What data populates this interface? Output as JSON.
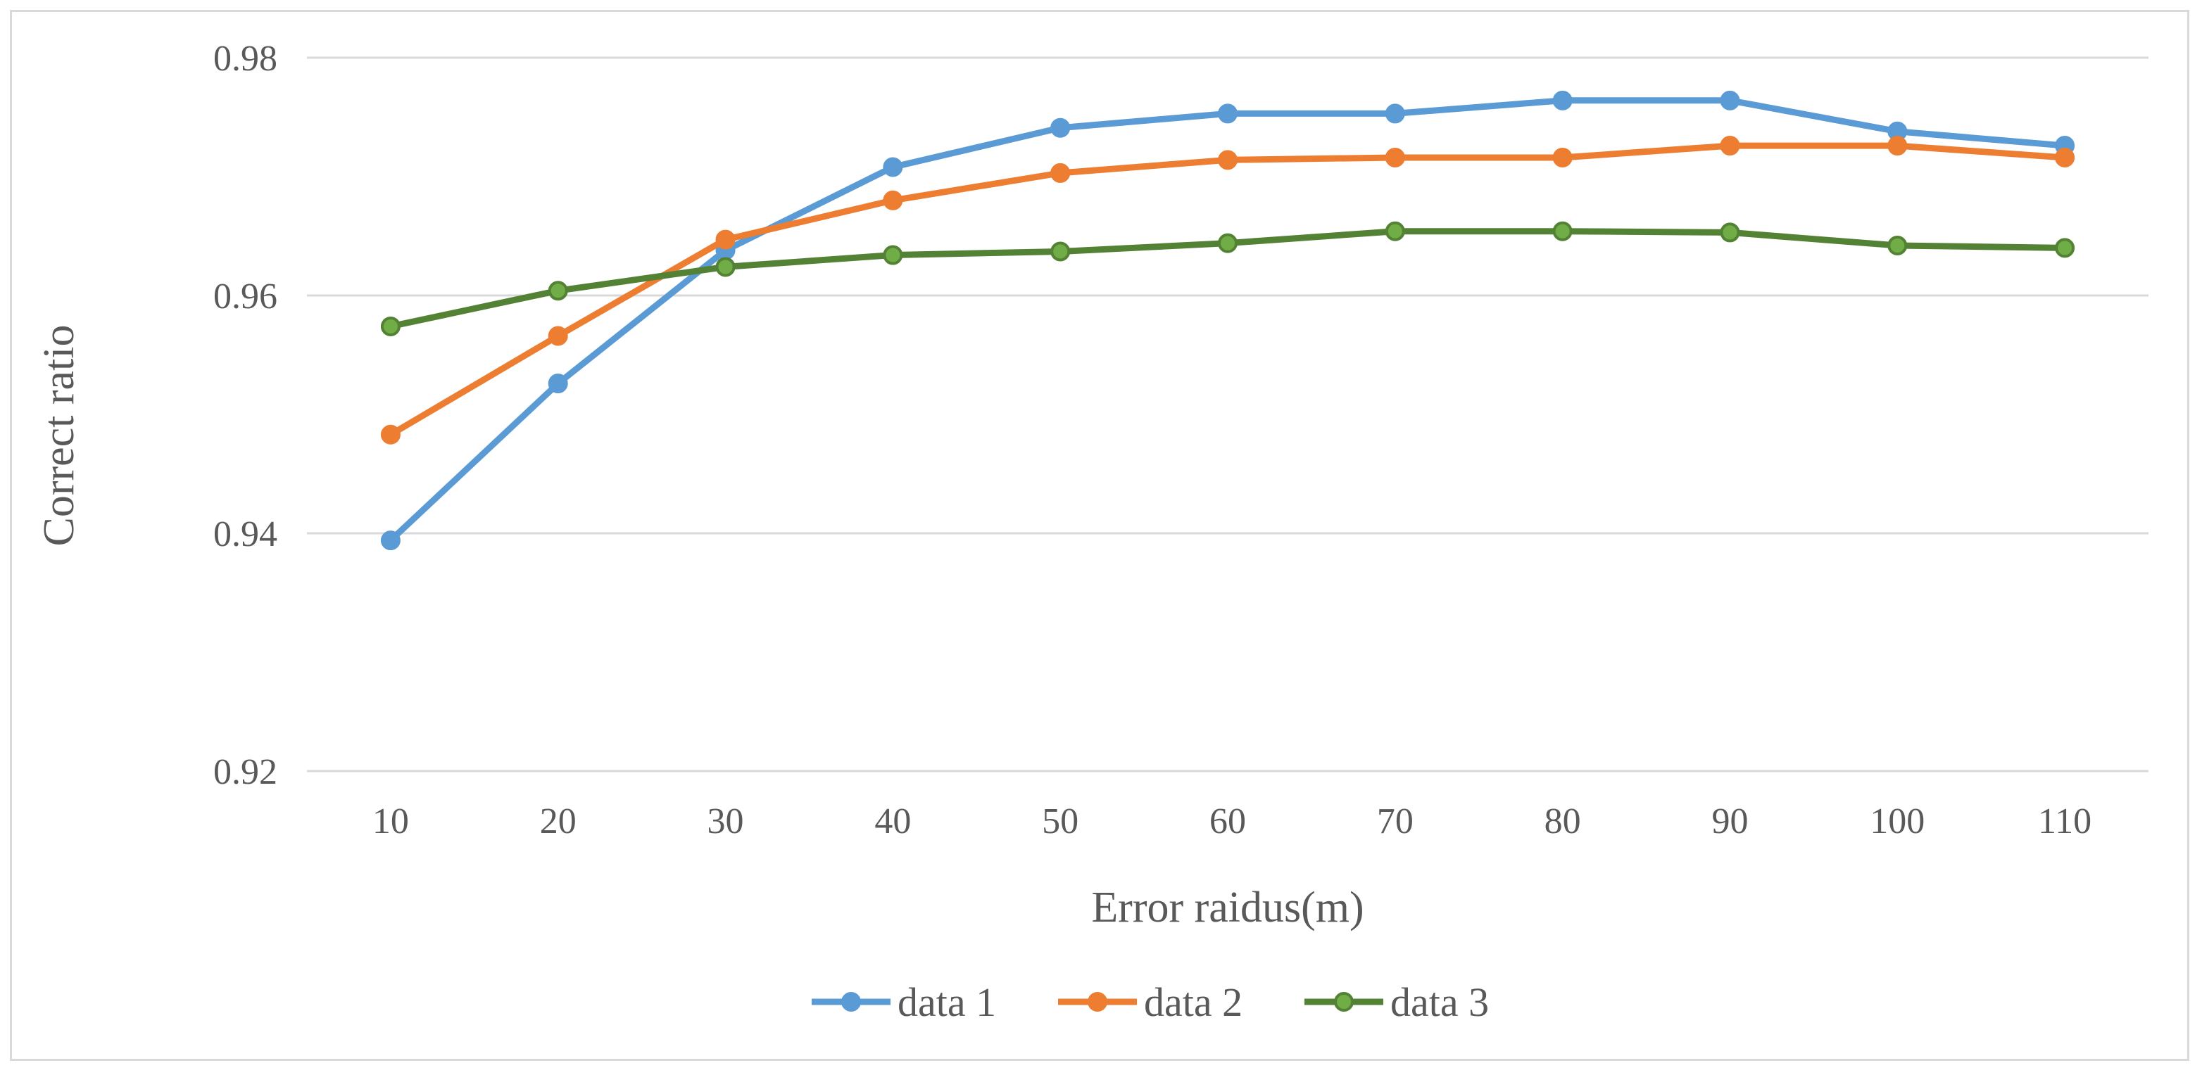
{
  "chart_data": {
    "type": "line",
    "title": "",
    "xlabel": "Error raidus(m)",
    "ylabel": "Correct ratio",
    "categories": [
      "10",
      "20",
      "30",
      "40",
      "50",
      "60",
      "70",
      "80",
      "90",
      "100",
      "110"
    ],
    "y_ticks": [
      "0.92",
      "0.94",
      "0.96",
      "0.98"
    ],
    "ylim": [
      0.92,
      0.98
    ],
    "grid": "horizontal",
    "legend_position": "bottom",
    "series": [
      {
        "name": "data 1",
        "color": "#5b9bd5",
        "values": [
          0.9394,
          0.9526,
          0.9638,
          0.9708,
          0.9741,
          0.9753,
          0.9753,
          0.9764,
          0.9764,
          0.9738,
          0.9726
        ]
      },
      {
        "name": "data 2",
        "color": "#ed7d31",
        "values": [
          0.9483,
          0.9566,
          0.9647,
          0.968,
          0.9703,
          0.9714,
          0.9716,
          0.9716,
          0.9726,
          0.9726,
          0.9716
        ]
      },
      {
        "name": "data 3",
        "color": "#548235",
        "marker_fill": "#70ad47",
        "values": [
          0.9574,
          0.9604,
          0.9624,
          0.9634,
          0.9637,
          0.9644,
          0.9654,
          0.9654,
          0.9653,
          0.9642,
          0.964
        ]
      }
    ]
  }
}
